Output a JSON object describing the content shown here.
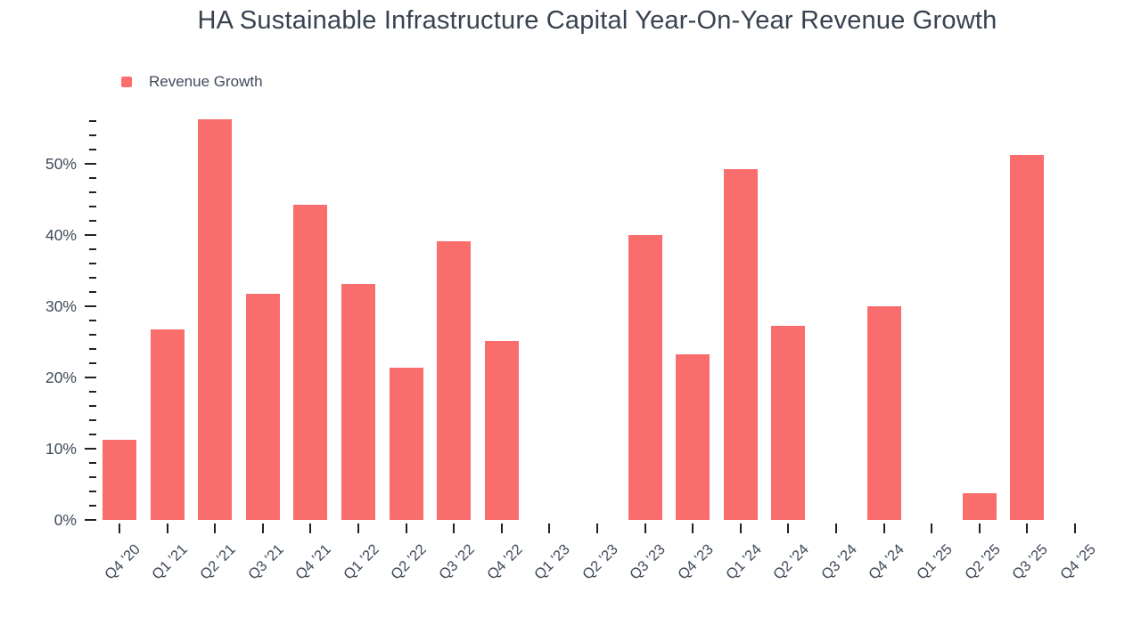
{
  "chart_data": {
    "type": "bar",
    "title": "HA Sustainable Infrastructure Capital Year-On-Year Revenue Growth",
    "legend": "Revenue Growth",
    "categories": [
      "Q4 '20",
      "Q1 '21",
      "Q2 '21",
      "Q3 '21",
      "Q4 '21",
      "Q1 '22",
      "Q2 '22",
      "Q3 '22",
      "Q4 '22",
      "Q1 '23",
      "Q2 '23",
      "Q3 '23",
      "Q4 '23",
      "Q1 '24",
      "Q2 '24",
      "Q3 '24",
      "Q4 '24",
      "Q1 '25",
      "Q2 '25",
      "Q3 '25",
      "Q4 '25"
    ],
    "values": [
      11.3,
      26.8,
      56.3,
      31.8,
      44.3,
      33.1,
      21.4,
      39.1,
      25.1,
      null,
      null,
      40.0,
      23.2,
      49.2,
      27.3,
      null,
      30.0,
      null,
      3.8,
      51.3,
      null
    ],
    "unit": "%",
    "xlabel": "",
    "ylabel": "",
    "y_axis": {
      "major_ticks": [
        0,
        10,
        20,
        30,
        40,
        50
      ],
      "major_tick_labels": [
        "0%",
        "10%",
        "20%",
        "30%",
        "40%",
        "50%"
      ],
      "minor_step": 2,
      "max": 56.4
    },
    "ylim": [
      0,
      56.4
    ],
    "grid": "off",
    "legend_position": "top-left",
    "bar_color": "#fa6d6d",
    "text_color": "#3f4a5a",
    "title_color": "#384250",
    "tick_color": "#222222"
  }
}
